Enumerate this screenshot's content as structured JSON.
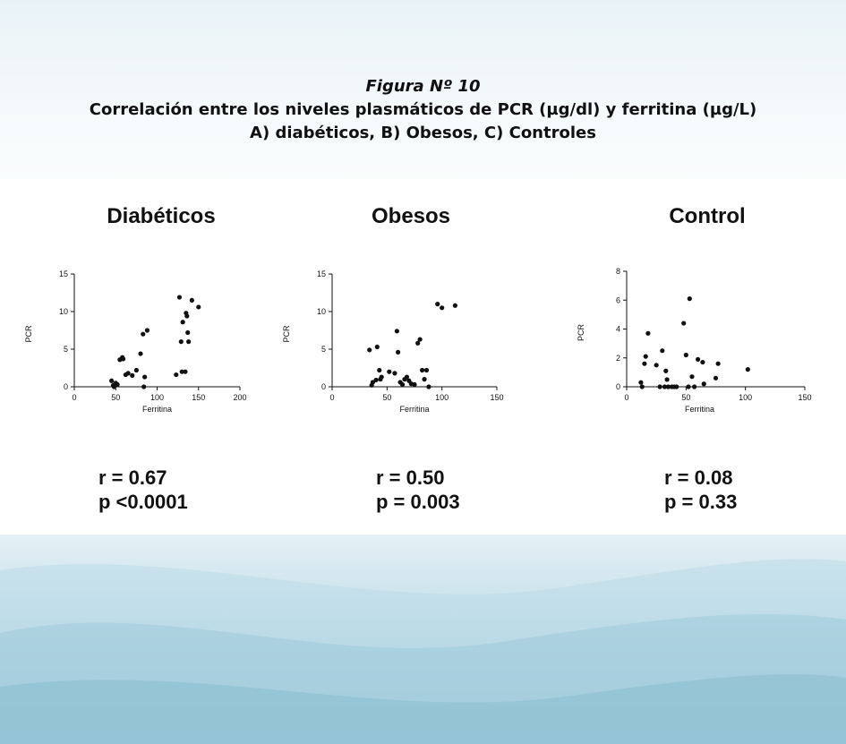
{
  "figure": {
    "label": "Figura Nº 10",
    "line1": "Correlación entre los niveles plasmáticos de PCR (µg/dl) y ferritina (µg/L)",
    "line2": "A) diabéticos, B) Obesos, C) Controles"
  },
  "chart_data": [
    {
      "type": "scatter",
      "title": "Diabéticos",
      "xlabel": "Ferritina",
      "ylabel": "PCR",
      "xlim": [
        0,
        200
      ],
      "ylim": [
        0,
        15
      ],
      "xticks": [
        "0",
        "50",
        "100",
        "150",
        "200"
      ],
      "yticks": [
        "0",
        "5",
        "10",
        "15"
      ],
      "grid": false,
      "stats": {
        "r": "r = 0.67",
        "p": "p <0.0001"
      },
      "points": [
        {
          "x": 45,
          "y": 0.8
        },
        {
          "x": 47,
          "y": 0.2
        },
        {
          "x": 48,
          "y": 0.0
        },
        {
          "x": 50,
          "y": 0.5
        },
        {
          "x": 52,
          "y": 0.3
        },
        {
          "x": 55,
          "y": 3.6
        },
        {
          "x": 58,
          "y": 3.9
        },
        {
          "x": 59,
          "y": 3.7
        },
        {
          "x": 62,
          "y": 1.6
        },
        {
          "x": 65,
          "y": 1.8
        },
        {
          "x": 70,
          "y": 1.5
        },
        {
          "x": 75,
          "y": 2.2
        },
        {
          "x": 80,
          "y": 4.4
        },
        {
          "x": 83,
          "y": 7.0
        },
        {
          "x": 84,
          "y": 0.0
        },
        {
          "x": 85,
          "y": 1.3
        },
        {
          "x": 88,
          "y": 7.5
        },
        {
          "x": 123,
          "y": 1.6
        },
        {
          "x": 127,
          "y": 11.9
        },
        {
          "x": 129,
          "y": 6.0
        },
        {
          "x": 130,
          "y": 2.0
        },
        {
          "x": 131,
          "y": 8.6
        },
        {
          "x": 134,
          "y": 2.0
        },
        {
          "x": 135,
          "y": 9.8
        },
        {
          "x": 136,
          "y": 9.4
        },
        {
          "x": 137,
          "y": 7.2
        },
        {
          "x": 138,
          "y": 6.0
        },
        {
          "x": 142,
          "y": 11.5
        },
        {
          "x": 150,
          "y": 10.6
        }
      ]
    },
    {
      "type": "scatter",
      "title": "Obesos",
      "xlabel": "Ferritina",
      "ylabel": "PCR",
      "xlim": [
        0,
        150
      ],
      "ylim": [
        0,
        15
      ],
      "xticks": [
        "0",
        "50",
        "100",
        "150"
      ],
      "yticks": [
        "0",
        "5",
        "10",
        "15"
      ],
      "grid": false,
      "stats": {
        "r": "r = 0.50",
        "p": "p = 0.003"
      },
      "points": [
        {
          "x": 34,
          "y": 4.9
        },
        {
          "x": 36,
          "y": 0.2
        },
        {
          "x": 37,
          "y": 0.6
        },
        {
          "x": 40,
          "y": 0.9
        },
        {
          "x": 41,
          "y": 5.3
        },
        {
          "x": 43,
          "y": 2.2
        },
        {
          "x": 44,
          "y": 1.0
        },
        {
          "x": 45,
          "y": 1.3
        },
        {
          "x": 52,
          "y": 2.0
        },
        {
          "x": 57,
          "y": 1.8
        },
        {
          "x": 59,
          "y": 7.4
        },
        {
          "x": 60,
          "y": 4.6
        },
        {
          "x": 62,
          "y": 0.6
        },
        {
          "x": 64,
          "y": 0.3
        },
        {
          "x": 66,
          "y": 1.0
        },
        {
          "x": 68,
          "y": 1.3
        },
        {
          "x": 70,
          "y": 0.8
        },
        {
          "x": 72,
          "y": 0.4
        },
        {
          "x": 75,
          "y": 0.3
        },
        {
          "x": 78,
          "y": 5.8
        },
        {
          "x": 80,
          "y": 6.3
        },
        {
          "x": 82,
          "y": 2.2
        },
        {
          "x": 84,
          "y": 1.0
        },
        {
          "x": 86,
          "y": 2.2
        },
        {
          "x": 88,
          "y": 0.0
        },
        {
          "x": 96,
          "y": 11.0
        },
        {
          "x": 100,
          "y": 10.5
        },
        {
          "x": 112,
          "y": 10.8
        }
      ]
    },
    {
      "type": "scatter",
      "title": "Control",
      "xlabel": "Ferritina",
      "ylabel": "PCR",
      "xlim": [
        0,
        150
      ],
      "ylim": [
        0,
        8
      ],
      "xticks": [
        "0",
        "50",
        "100",
        "150"
      ],
      "yticks": [
        "0",
        "2",
        "4",
        "6",
        "8"
      ],
      "grid": false,
      "stats": {
        "r": "r = 0.08",
        "p": "p = 0.33"
      },
      "points": [
        {
          "x": 12,
          "y": 0.3
        },
        {
          "x": 13,
          "y": 0.0
        },
        {
          "x": 15,
          "y": 1.6
        },
        {
          "x": 16,
          "y": 2.1
        },
        {
          "x": 18,
          "y": 3.7
        },
        {
          "x": 25,
          "y": 1.5
        },
        {
          "x": 28,
          "y": 0.0
        },
        {
          "x": 30,
          "y": 2.5
        },
        {
          "x": 32,
          "y": 0.0
        },
        {
          "x": 33,
          "y": 1.1
        },
        {
          "x": 34,
          "y": 0.5
        },
        {
          "x": 35,
          "y": 0.0
        },
        {
          "x": 38,
          "y": 0.0
        },
        {
          "x": 40,
          "y": 0.0
        },
        {
          "x": 42,
          "y": 0.0
        },
        {
          "x": 48,
          "y": 4.4
        },
        {
          "x": 50,
          "y": 2.2
        },
        {
          "x": 52,
          "y": 0.0
        },
        {
          "x": 53,
          "y": 6.1
        },
        {
          "x": 55,
          "y": 0.7
        },
        {
          "x": 57,
          "y": 0.0
        },
        {
          "x": 60,
          "y": 1.9
        },
        {
          "x": 64,
          "y": 1.7
        },
        {
          "x": 65,
          "y": 0.2
        },
        {
          "x": 75,
          "y": 0.6
        },
        {
          "x": 77,
          "y": 1.6
        },
        {
          "x": 102,
          "y": 1.2
        }
      ]
    }
  ]
}
